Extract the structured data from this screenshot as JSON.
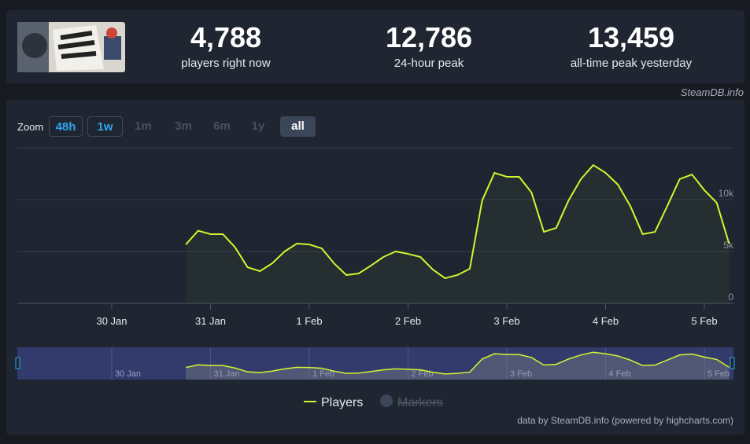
{
  "stats": [
    {
      "value": "4,788",
      "label": "players right now"
    },
    {
      "value": "12,786",
      "label": "24-hour peak"
    },
    {
      "value": "13,459",
      "label": "all-time peak yesterday"
    }
  ],
  "source": "SteamDB.info",
  "zoom": {
    "label": "Zoom",
    "buttons": [
      "48h",
      "1w",
      "1m",
      "3m",
      "6m",
      "1y",
      "all"
    ]
  },
  "credit": "data by SteamDB.info (powered by highcharts.com)",
  "chart_data": {
    "type": "line",
    "categories": [
      null,
      null,
      null,
      null,
      null,
      null,
      null,
      null,
      "30 Jan",
      null,
      null,
      null,
      null,
      null,
      null,
      null,
      "31 Jan",
      null,
      null,
      null,
      null,
      null,
      null,
      null,
      "1 Feb",
      null,
      null,
      null,
      null,
      null,
      null,
      null,
      "2 Feb",
      null,
      null,
      null,
      null,
      null,
      null,
      null,
      "3 Feb",
      null,
      null,
      null,
      null,
      null,
      null,
      null,
      "4 Feb",
      null,
      null,
      null,
      null,
      null,
      null,
      null,
      "5 Feb",
      null,
      null
    ],
    "series": [
      {
        "name": "Players",
        "color": "#d4f52e",
        "values": [
          null,
          null,
          null,
          null,
          null,
          null,
          null,
          null,
          null,
          null,
          null,
          null,
          null,
          null,
          5680,
          7000,
          6670,
          6670,
          5380,
          3480,
          3100,
          3860,
          5000,
          5760,
          5680,
          5300,
          3860,
          2730,
          2880,
          3640,
          4470,
          5000,
          4770,
          4470,
          3260,
          2420,
          2730,
          3330,
          9900,
          12580,
          12200,
          12200,
          10680,
          6890,
          7270,
          9920,
          11970,
          13330,
          12580,
          11440,
          9390,
          6670,
          6890,
          9390,
          11970,
          12420,
          10910,
          9700,
          5760
        ]
      },
      {
        "name": "Markers",
        "color": "#3b4658",
        "visible": false,
        "values": [
          null,
          null,
          null,
          null,
          null,
          null,
          null,
          null,
          null,
          null,
          null,
          null,
          null,
          null,
          null,
          null,
          null,
          null,
          null,
          null,
          null,
          null,
          null,
          null,
          null,
          null,
          null,
          null,
          null,
          null,
          null,
          null,
          null,
          null,
          null,
          null,
          null,
          null,
          null,
          null,
          null,
          null,
          null,
          null,
          null,
          null,
          null,
          null,
          null,
          null,
          null,
          null,
          null,
          null,
          null,
          null,
          null,
          null,
          null
        ]
      }
    ],
    "ylim": [
      0,
      15000
    ],
    "yticks": [
      0,
      {
        "value": 5000,
        "label": "5k"
      },
      {
        "value": 10000,
        "label": "10k"
      }
    ],
    "grid": true
  }
}
